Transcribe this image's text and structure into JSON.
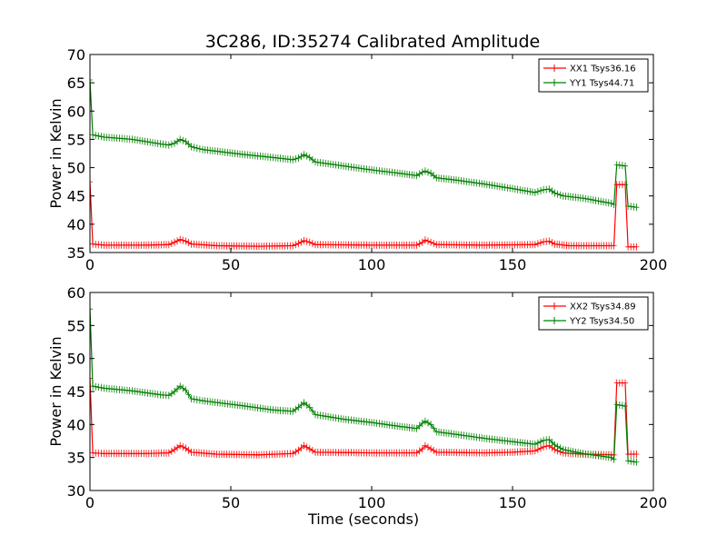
{
  "title": "3C286, ID:35274 Calibrated Amplitude",
  "colors": {
    "xx": "#ff0000",
    "yy": "#008000"
  },
  "chart_data": [
    {
      "type": "line",
      "ylabel": "Power in Kelvin",
      "xlabel": "",
      "xlim": [
        0,
        200
      ],
      "ylim": [
        35,
        70
      ],
      "xticks": [
        "0",
        "50",
        "100",
        "150",
        "200"
      ],
      "yticks": [
        "35",
        "40",
        "45",
        "50",
        "55",
        "60",
        "65",
        "70"
      ],
      "legend_position": "top-right",
      "grid": false,
      "series": [
        {
          "name": "XX1 Tsys36.16",
          "color": "#ff0000",
          "points": [
            [
              0,
              47.5
            ],
            [
              1,
              36.5
            ],
            [
              5,
              36.3
            ],
            [
              20,
              36.3
            ],
            [
              28,
              36.4
            ],
            [
              30,
              36.8
            ],
            [
              32,
              37.3
            ],
            [
              34,
              37.0
            ],
            [
              36,
              36.5
            ],
            [
              45,
              36.2
            ],
            [
              60,
              36.1
            ],
            [
              72,
              36.2
            ],
            [
              74,
              36.6
            ],
            [
              76,
              37.1
            ],
            [
              78,
              36.8
            ],
            [
              80,
              36.4
            ],
            [
              100,
              36.3
            ],
            [
              116,
              36.3
            ],
            [
              118,
              36.8
            ],
            [
              119,
              37.2
            ],
            [
              121,
              36.8
            ],
            [
              123,
              36.4
            ],
            [
              140,
              36.3
            ],
            [
              158,
              36.4
            ],
            [
              161,
              36.9
            ],
            [
              163,
              37.0
            ],
            [
              165,
              36.5
            ],
            [
              170,
              36.2
            ],
            [
              186,
              36.2
            ],
            [
              187,
              47.0
            ],
            [
              190,
              47.0
            ],
            [
              191,
              36.0
            ],
            [
              194,
              36.0
            ]
          ]
        },
        {
          "name": "YY1 Tsys44.71",
          "color": "#008000",
          "points": [
            [
              0,
              65.5
            ],
            [
              1,
              55.8
            ],
            [
              5,
              55.4
            ],
            [
              15,
              55.0
            ],
            [
              25,
              54.2
            ],
            [
              28,
              54.0
            ],
            [
              30,
              54.3
            ],
            [
              32,
              55.0
            ],
            [
              34,
              54.6
            ],
            [
              36,
              53.7
            ],
            [
              40,
              53.2
            ],
            [
              55,
              52.3
            ],
            [
              65,
              51.8
            ],
            [
              72,
              51.4
            ],
            [
              74,
              51.7
            ],
            [
              76,
              52.3
            ],
            [
              78,
              51.8
            ],
            [
              80,
              51.0
            ],
            [
              90,
              50.3
            ],
            [
              100,
              49.6
            ],
            [
              110,
              49.0
            ],
            [
              116,
              48.6
            ],
            [
              118,
              49.2
            ],
            [
              119,
              49.4
            ],
            [
              121,
              49.0
            ],
            [
              123,
              48.2
            ],
            [
              130,
              47.8
            ],
            [
              140,
              47.1
            ],
            [
              150,
              46.3
            ],
            [
              158,
              45.6
            ],
            [
              161,
              46.1
            ],
            [
              163,
              46.2
            ],
            [
              165,
              45.5
            ],
            [
              168,
              45.0
            ],
            [
              175,
              44.6
            ],
            [
              185,
              43.7
            ],
            [
              186,
              43.5
            ],
            [
              187,
              50.5
            ],
            [
              190,
              50.3
            ],
            [
              191,
              43.2
            ],
            [
              194,
              43.0
            ]
          ]
        }
      ]
    },
    {
      "type": "line",
      "ylabel": "Power in Kelvin",
      "xlabel": "Time (seconds)",
      "xlim": [
        0,
        200
      ],
      "ylim": [
        30,
        60
      ],
      "xticks": [
        "0",
        "50",
        "100",
        "150",
        "200"
      ],
      "yticks": [
        "30",
        "35",
        "40",
        "45",
        "50",
        "55",
        "60"
      ],
      "legend_position": "top-right",
      "grid": false,
      "series": [
        {
          "name": "XX2 Tsys34.89",
          "color": "#ff0000",
          "points": [
            [
              0,
              47.0
            ],
            [
              1,
              35.7
            ],
            [
              5,
              35.6
            ],
            [
              20,
              35.6
            ],
            [
              28,
              35.7
            ],
            [
              30,
              36.2
            ],
            [
              32,
              36.8
            ],
            [
              34,
              36.4
            ],
            [
              36,
              35.8
            ],
            [
              45,
              35.5
            ],
            [
              60,
              35.4
            ],
            [
              72,
              35.6
            ],
            [
              74,
              36.1
            ],
            [
              76,
              36.8
            ],
            [
              78,
              36.3
            ],
            [
              80,
              35.8
            ],
            [
              100,
              35.7
            ],
            [
              116,
              35.7
            ],
            [
              118,
              36.3
            ],
            [
              119,
              36.8
            ],
            [
              121,
              36.3
            ],
            [
              123,
              35.8
            ],
            [
              140,
              35.7
            ],
            [
              150,
              35.8
            ],
            [
              158,
              36.0
            ],
            [
              161,
              36.6
            ],
            [
              163,
              36.8
            ],
            [
              165,
              36.2
            ],
            [
              168,
              35.7
            ],
            [
              175,
              35.5
            ],
            [
              186,
              35.4
            ],
            [
              187,
              46.3
            ],
            [
              190,
              46.3
            ],
            [
              191,
              35.5
            ],
            [
              194,
              35.5
            ]
          ]
        },
        {
          "name": "YY2 Tsys34.50",
          "color": "#008000",
          "points": [
            [
              0,
              57.5
            ],
            [
              1,
              45.8
            ],
            [
              5,
              45.5
            ],
            [
              15,
              45.1
            ],
            [
              25,
              44.5
            ],
            [
              28,
              44.4
            ],
            [
              30,
              45.0
            ],
            [
              32,
              45.8
            ],
            [
              34,
              45.2
            ],
            [
              36,
              43.9
            ],
            [
              40,
              43.6
            ],
            [
              55,
              42.8
            ],
            [
              65,
              42.2
            ],
            [
              72,
              42.0
            ],
            [
              74,
              42.6
            ],
            [
              76,
              43.3
            ],
            [
              78,
              42.6
            ],
            [
              80,
              41.5
            ],
            [
              90,
              40.8
            ],
            [
              100,
              40.3
            ],
            [
              110,
              39.7
            ],
            [
              116,
              39.4
            ],
            [
              118,
              40.2
            ],
            [
              119,
              40.5
            ],
            [
              121,
              40.0
            ],
            [
              123,
              38.9
            ],
            [
              130,
              38.5
            ],
            [
              140,
              37.9
            ],
            [
              150,
              37.4
            ],
            [
              158,
              37.0
            ],
            [
              161,
              37.6
            ],
            [
              163,
              37.7
            ],
            [
              165,
              36.9
            ],
            [
              168,
              36.2
            ],
            [
              175,
              35.6
            ],
            [
              185,
              35.0
            ],
            [
              186,
              34.7
            ],
            [
              187,
              43.0
            ],
            [
              190,
              42.8
            ],
            [
              191,
              34.5
            ],
            [
              194,
              34.3
            ]
          ]
        }
      ]
    }
  ]
}
